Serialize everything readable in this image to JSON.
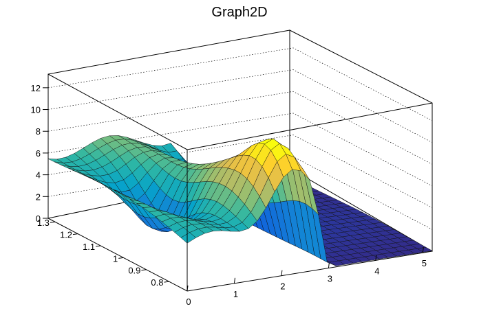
{
  "chart_data": {
    "type": "surface",
    "title": "Graph2D",
    "colorscale": [
      "#352a87",
      "#0f5cdd",
      "#1481d6",
      "#06a4ca",
      "#2eb7a4",
      "#87bf77",
      "#d1bb59",
      "#fec832",
      "#f9fb0e"
    ],
    "x_ticks": [
      "0",
      "1",
      "2",
      "3",
      "4",
      "5"
    ],
    "y_ticks": [
      "1.3",
      "1.2",
      "1.1",
      "1",
      "0.9",
      "0.8"
    ],
    "z_ticks": [
      "0",
      "2",
      "4",
      "6",
      "8",
      "10",
      "12"
    ],
    "xlim": [
      0,
      5.2
    ],
    "ylim": [
      0.72,
      1.33
    ],
    "zlim": [
      0,
      13
    ],
    "grid": true
  }
}
